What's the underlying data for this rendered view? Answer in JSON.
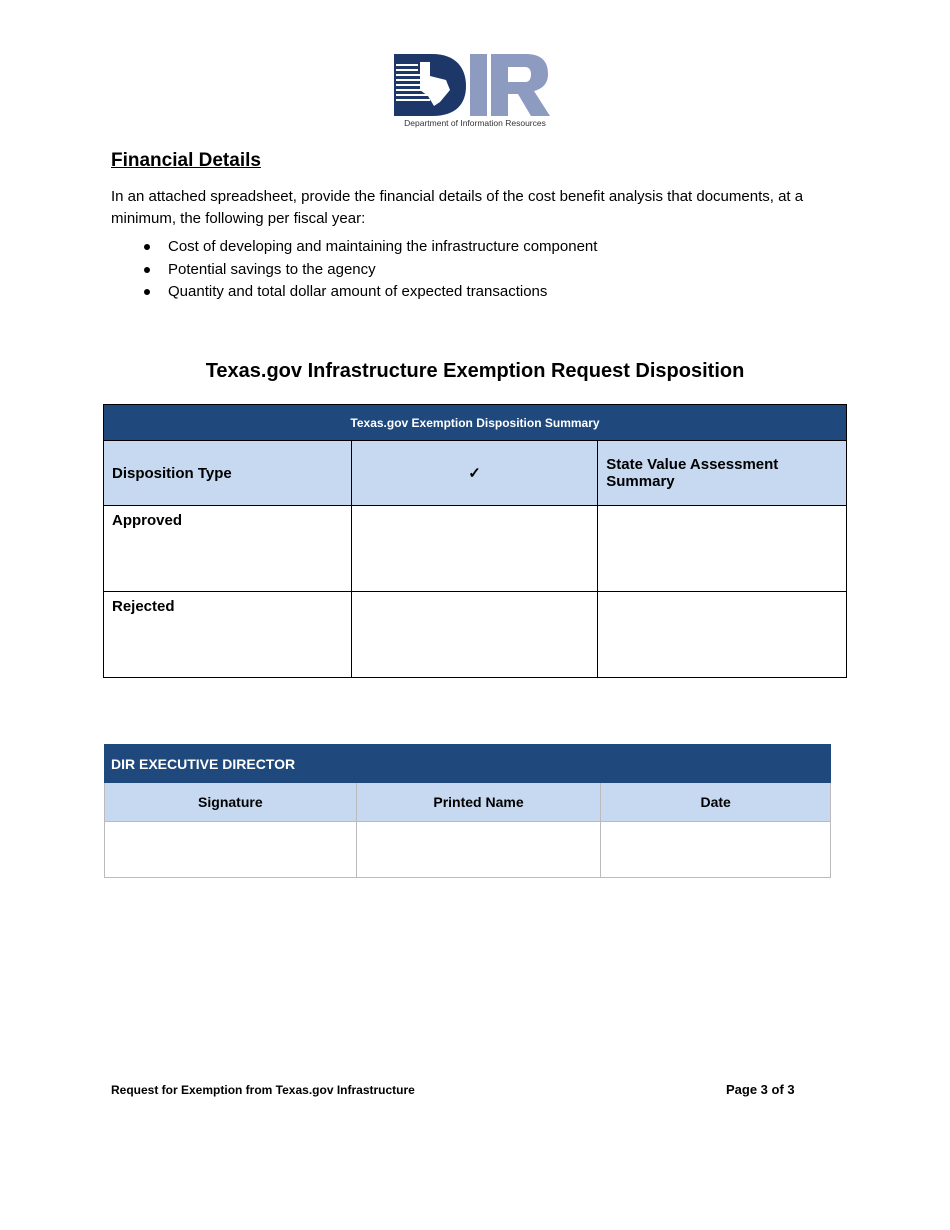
{
  "header": {
    "logo_text": "DIR",
    "logo_caption": "Department of Information Resources",
    "logo_colors": {
      "dark": "#1c3768",
      "light": "#8c9bbf"
    }
  },
  "financial": {
    "title": "Financial Details",
    "body": "In an attached spreadsheet, provide the financial details of the cost benefit analysis that documents, at a minimum, the following per fiscal year:",
    "items": [
      "Cost of developing and maintaining the infrastructure component",
      "Potential savings to the agency",
      "Quantity and total dollar amount of expected transactions"
    ]
  },
  "disposition": {
    "title": "Texas.gov Infrastructure Exemption Request Disposition",
    "table_title": "Texas.gov Exemption Disposition Summary",
    "columns": [
      "Disposition Type",
      "✓",
      "State Value Assessment Summary"
    ],
    "rows": [
      {
        "type": "Approved"
      },
      {
        "type": "Rejected"
      }
    ]
  },
  "signoff": {
    "title": "DIR EXECUTIVE DIRECTOR",
    "columns": [
      "Signature",
      "Printed Name",
      "Date"
    ]
  },
  "footer": {
    "left": "Request for Exemption from Texas.gov Infrastructure",
    "right": "Page 3 of 3"
  },
  "colors": {
    "header_blue": "#1f497d",
    "light_blue": "#c6d9f1"
  }
}
